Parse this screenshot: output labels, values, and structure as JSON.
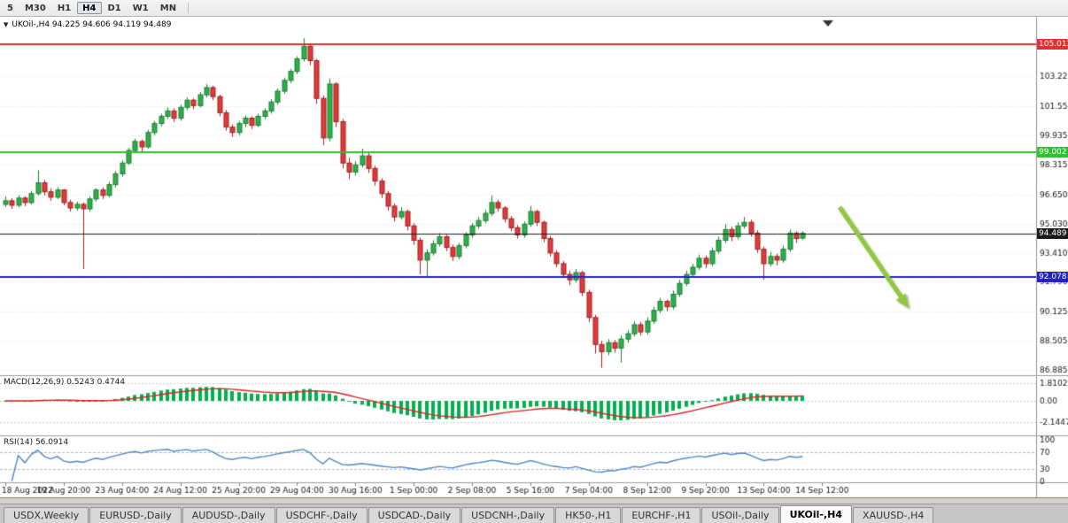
{
  "toolbar": {
    "timeframes": [
      {
        "label": "5",
        "active": false
      },
      {
        "label": "M30",
        "active": false
      },
      {
        "label": "H1",
        "active": false
      },
      {
        "label": "H4",
        "active": true
      },
      {
        "label": "D1",
        "active": false
      },
      {
        "label": "W1",
        "active": false
      },
      {
        "label": "MN",
        "active": false
      }
    ]
  },
  "chart_data": {
    "type": "candlestick",
    "symbol": "UKOil-",
    "timeframe": "H4",
    "title": "UKOil-,H4 94.225 94.606 94.119 94.489",
    "ohlc_values": [
      "94.225",
      "94.606",
      "94.119",
      "94.489"
    ],
    "price_axis_labels": [
      "86.885",
      "88.505",
      "90.125",
      "91.790",
      "93.410",
      "95.030",
      "96.650",
      "98.315",
      "99.935",
      "101.555",
      "103.220"
    ],
    "time_axis_labels": [
      "18 Aug 2022",
      "19 Aug 20:00",
      "23 Aug 04:00",
      "24 Aug 12:00",
      "25 Aug 20:00",
      "29 Aug 04:00",
      "30 Aug 16:00",
      "1 Sep 00:00",
      "2 Sep 08:00",
      "5 Sep 16:00",
      "7 Sep 04:00",
      "8 Sep 12:00",
      "9 Sep 20:00",
      "13 Sep 04:00",
      "14 Sep 12:00"
    ],
    "hlines": [
      {
        "price": 105.012,
        "label": "105.012",
        "color": "#e03030",
        "width": 2,
        "role": "resistance"
      },
      {
        "price": 99.002,
        "label": "99.002",
        "color": "#2fc12f",
        "width": 2,
        "role": "mid-resistance"
      },
      {
        "price": 92.078,
        "label": "92.078",
        "color": "#2222c4",
        "width": 2,
        "role": "support"
      },
      {
        "price": 94.489,
        "label": "94.489",
        "color": "#1a1a1a",
        "width": 1,
        "role": "last-price"
      }
    ],
    "annotations": [
      {
        "type": "arrow",
        "direction": "down-right",
        "color": "#92c83e",
        "from": [
          948,
          234
        ],
        "to": [
          1026,
          348
        ]
      }
    ],
    "colors": {
      "background": "#ffffff",
      "grid": "#e4e4e4",
      "bull": "#2eb04a",
      "bull_border": "#1d7c32",
      "bear": "#e03a3a",
      "bear_border": "#9e2020",
      "axis_text": "#151515"
    },
    "candles": [
      [
        96.1,
        96.55,
        95.95,
        96.3
      ],
      [
        96.3,
        96.45,
        95.85,
        96.05
      ],
      [
        96.05,
        96.6,
        95.95,
        96.45
      ],
      [
        96.45,
        96.55,
        96.0,
        96.2
      ],
      [
        96.2,
        96.85,
        96.1,
        96.7
      ],
      [
        96.7,
        98.0,
        96.6,
        97.3
      ],
      [
        97.3,
        97.45,
        96.6,
        96.8
      ],
      [
        96.8,
        97.0,
        96.3,
        96.5
      ],
      [
        96.5,
        97.05,
        96.4,
        96.9
      ],
      [
        96.9,
        96.95,
        96.05,
        96.2
      ],
      [
        96.2,
        96.35,
        95.7,
        95.9
      ],
      [
        95.9,
        96.25,
        95.75,
        96.1
      ],
      [
        96.1,
        96.2,
        92.5,
        95.85
      ],
      [
        95.85,
        96.55,
        95.7,
        96.4
      ],
      [
        96.4,
        97.0,
        96.25,
        96.9
      ],
      [
        96.9,
        97.05,
        96.4,
        96.6
      ],
      [
        96.6,
        97.35,
        96.5,
        97.2
      ],
      [
        97.2,
        97.95,
        97.05,
        97.8
      ],
      [
        97.8,
        98.55,
        97.65,
        98.4
      ],
      [
        98.4,
        99.25,
        98.3,
        99.1
      ],
      [
        99.1,
        99.75,
        98.95,
        99.6
      ],
      [
        99.6,
        99.7,
        99.05,
        99.3
      ],
      [
        99.3,
        100.25,
        99.2,
        100.1
      ],
      [
        100.1,
        100.75,
        99.95,
        100.6
      ],
      [
        100.6,
        101.15,
        100.45,
        101.0
      ],
      [
        101.0,
        101.5,
        100.85,
        101.3
      ],
      [
        101.3,
        101.45,
        100.7,
        100.9
      ],
      [
        100.9,
        101.65,
        100.75,
        101.5
      ],
      [
        101.5,
        102.05,
        101.35,
        101.9
      ],
      [
        101.9,
        102.0,
        101.4,
        101.6
      ],
      [
        101.6,
        102.35,
        101.5,
        102.2
      ],
      [
        102.2,
        102.8,
        102.05,
        102.6
      ],
      [
        102.6,
        102.7,
        101.9,
        102.1
      ],
      [
        102.1,
        102.2,
        101.0,
        101.2
      ],
      [
        101.2,
        101.35,
        100.2,
        100.4
      ],
      [
        100.4,
        100.55,
        99.85,
        100.1
      ],
      [
        100.1,
        100.75,
        99.95,
        100.6
      ],
      [
        100.6,
        101.05,
        100.4,
        100.9
      ],
      [
        100.9,
        101.0,
        100.3,
        100.5
      ],
      [
        100.5,
        101.15,
        100.4,
        101.0
      ],
      [
        101.0,
        101.45,
        100.85,
        101.3
      ],
      [
        101.3,
        101.95,
        101.15,
        101.8
      ],
      [
        101.8,
        102.55,
        101.65,
        102.4
      ],
      [
        102.4,
        103.15,
        102.25,
        103.0
      ],
      [
        103.0,
        103.65,
        102.85,
        103.5
      ],
      [
        103.5,
        104.35,
        103.35,
        104.2
      ],
      [
        104.2,
        105.35,
        104.05,
        104.9
      ],
      [
        104.9,
        105.05,
        103.85,
        104.1
      ],
      [
        104.1,
        104.2,
        101.7,
        102.0
      ],
      [
        102.0,
        102.15,
        99.4,
        99.8
      ],
      [
        99.8,
        103.1,
        99.6,
        102.8
      ],
      [
        102.8,
        102.9,
        100.4,
        100.7
      ],
      [
        100.7,
        100.85,
        98.1,
        98.4
      ],
      [
        98.4,
        98.7,
        97.5,
        97.9
      ],
      [
        97.9,
        98.5,
        97.7,
        98.3
      ],
      [
        98.3,
        99.2,
        98.15,
        98.8
      ],
      [
        98.8,
        98.95,
        97.85,
        98.1
      ],
      [
        98.1,
        98.25,
        97.15,
        97.4
      ],
      [
        97.4,
        97.55,
        96.45,
        96.7
      ],
      [
        96.7,
        96.85,
        95.75,
        96.0
      ],
      [
        96.0,
        96.15,
        95.15,
        95.4
      ],
      [
        95.4,
        95.95,
        95.25,
        95.7
      ],
      [
        95.7,
        95.8,
        94.65,
        94.9
      ],
      [
        94.9,
        95.05,
        93.85,
        94.1
      ],
      [
        94.1,
        94.25,
        92.2,
        93.0
      ],
      [
        93.0,
        93.6,
        92.1,
        93.4
      ],
      [
        93.4,
        94.1,
        93.25,
        93.9
      ],
      [
        93.9,
        94.5,
        93.75,
        94.3
      ],
      [
        94.3,
        94.4,
        93.5,
        93.7
      ],
      [
        93.7,
        93.85,
        92.95,
        93.2
      ],
      [
        93.2,
        93.95,
        93.05,
        93.8
      ],
      [
        93.8,
        94.55,
        93.65,
        94.4
      ],
      [
        94.4,
        95.05,
        94.25,
        94.9
      ],
      [
        94.9,
        95.4,
        94.75,
        95.2
      ],
      [
        95.2,
        95.8,
        95.05,
        95.6
      ],
      [
        95.6,
        96.6,
        95.45,
        96.2
      ],
      [
        96.2,
        96.35,
        95.7,
        95.9
      ],
      [
        95.9,
        96.0,
        95.1,
        95.3
      ],
      [
        95.3,
        95.45,
        94.6,
        94.8
      ],
      [
        94.8,
        94.95,
        94.2,
        94.4
      ],
      [
        94.4,
        95.15,
        94.25,
        95.0
      ],
      [
        95.0,
        96.0,
        94.85,
        95.7
      ],
      [
        95.7,
        95.8,
        94.9,
        95.1
      ],
      [
        95.1,
        95.2,
        94.0,
        94.2
      ],
      [
        94.2,
        94.35,
        93.2,
        93.4
      ],
      [
        93.4,
        93.55,
        92.6,
        92.8
      ],
      [
        92.8,
        92.95,
        92.0,
        92.2
      ],
      [
        92.2,
        92.4,
        91.6,
        91.9
      ],
      [
        91.9,
        92.5,
        91.75,
        92.3
      ],
      [
        92.3,
        92.4,
        91.0,
        91.2
      ],
      [
        91.2,
        91.35,
        89.55,
        89.8
      ],
      [
        89.8,
        89.95,
        87.8,
        88.3
      ],
      [
        88.3,
        88.5,
        87.0,
        87.9
      ],
      [
        87.9,
        88.6,
        87.7,
        88.4
      ],
      [
        88.4,
        88.55,
        87.85,
        88.1
      ],
      [
        88.1,
        88.8,
        87.3,
        88.6
      ],
      [
        88.6,
        89.1,
        88.4,
        88.9
      ],
      [
        88.9,
        89.6,
        88.75,
        89.4
      ],
      [
        89.4,
        89.55,
        88.8,
        89.0
      ],
      [
        89.0,
        89.8,
        88.85,
        89.6
      ],
      [
        89.6,
        90.4,
        89.45,
        90.2
      ],
      [
        90.2,
        90.9,
        90.05,
        90.7
      ],
      [
        90.7,
        90.8,
        90.15,
        90.4
      ],
      [
        90.4,
        91.3,
        90.25,
        91.1
      ],
      [
        91.1,
        91.9,
        90.95,
        91.7
      ],
      [
        91.7,
        92.4,
        91.55,
        92.2
      ],
      [
        92.2,
        92.8,
        92.05,
        92.6
      ],
      [
        92.6,
        93.3,
        92.45,
        93.1
      ],
      [
        93.1,
        93.25,
        92.55,
        92.8
      ],
      [
        92.8,
        93.7,
        92.65,
        93.5
      ],
      [
        93.5,
        94.3,
        93.35,
        94.1
      ],
      [
        94.1,
        95.0,
        93.95,
        94.7
      ],
      [
        94.7,
        94.85,
        94.05,
        94.3
      ],
      [
        94.3,
        95.1,
        94.15,
        94.9
      ],
      [
        94.9,
        95.4,
        94.75,
        95.1
      ],
      [
        95.1,
        95.25,
        94.3,
        94.5
      ],
      [
        94.5,
        94.65,
        93.4,
        93.6
      ],
      [
        93.6,
        93.75,
        91.9,
        92.8
      ],
      [
        92.8,
        93.45,
        92.65,
        93.2
      ],
      [
        93.2,
        93.35,
        92.7,
        93.0
      ],
      [
        93.0,
        93.8,
        92.85,
        93.6
      ],
      [
        93.6,
        94.7,
        93.45,
        94.5
      ],
      [
        94.5,
        94.6,
        93.95,
        94.2
      ],
      [
        94.225,
        94.606,
        94.119,
        94.489
      ]
    ],
    "indicators": [
      {
        "name": "MACD",
        "label": "MACD(12,26,9) 0.5243 0.4744",
        "params": [
          12,
          26,
          9
        ],
        "values_text": [
          "0.5243",
          "0.4744"
        ],
        "axis_labels": [
          "1.8102",
          "0.00",
          "-2.1447"
        ],
        "histogram_color": "#00b050",
        "signal_color": "#dd2222"
      },
      {
        "name": "RSI",
        "label": "RSI(14) 56.0914",
        "params": [
          14
        ],
        "value_text": "56.0914",
        "axis_labels": [
          "100",
          "70",
          "30",
          "0"
        ],
        "levels": [
          70,
          30
        ],
        "line_color": "#4a86c8"
      }
    ]
  },
  "tabs": {
    "items": [
      {
        "label": "USDX,Weekly",
        "active": false
      },
      {
        "label": "EURUSD-,Daily",
        "active": false
      },
      {
        "label": "AUDUSD-,Daily",
        "active": false
      },
      {
        "label": "USDCHF-,Daily",
        "active": false
      },
      {
        "label": "USDCAD-,Daily",
        "active": false
      },
      {
        "label": "USDCNH-,Daily",
        "active": false
      },
      {
        "label": "HK50-,H1",
        "active": false
      },
      {
        "label": "EURCHF-,H1",
        "active": false
      },
      {
        "label": "USOil-,Daily",
        "active": false
      },
      {
        "label": "UKOil-,H4",
        "active": true
      },
      {
        "label": "XAUUSD-,H4",
        "active": false
      }
    ]
  }
}
